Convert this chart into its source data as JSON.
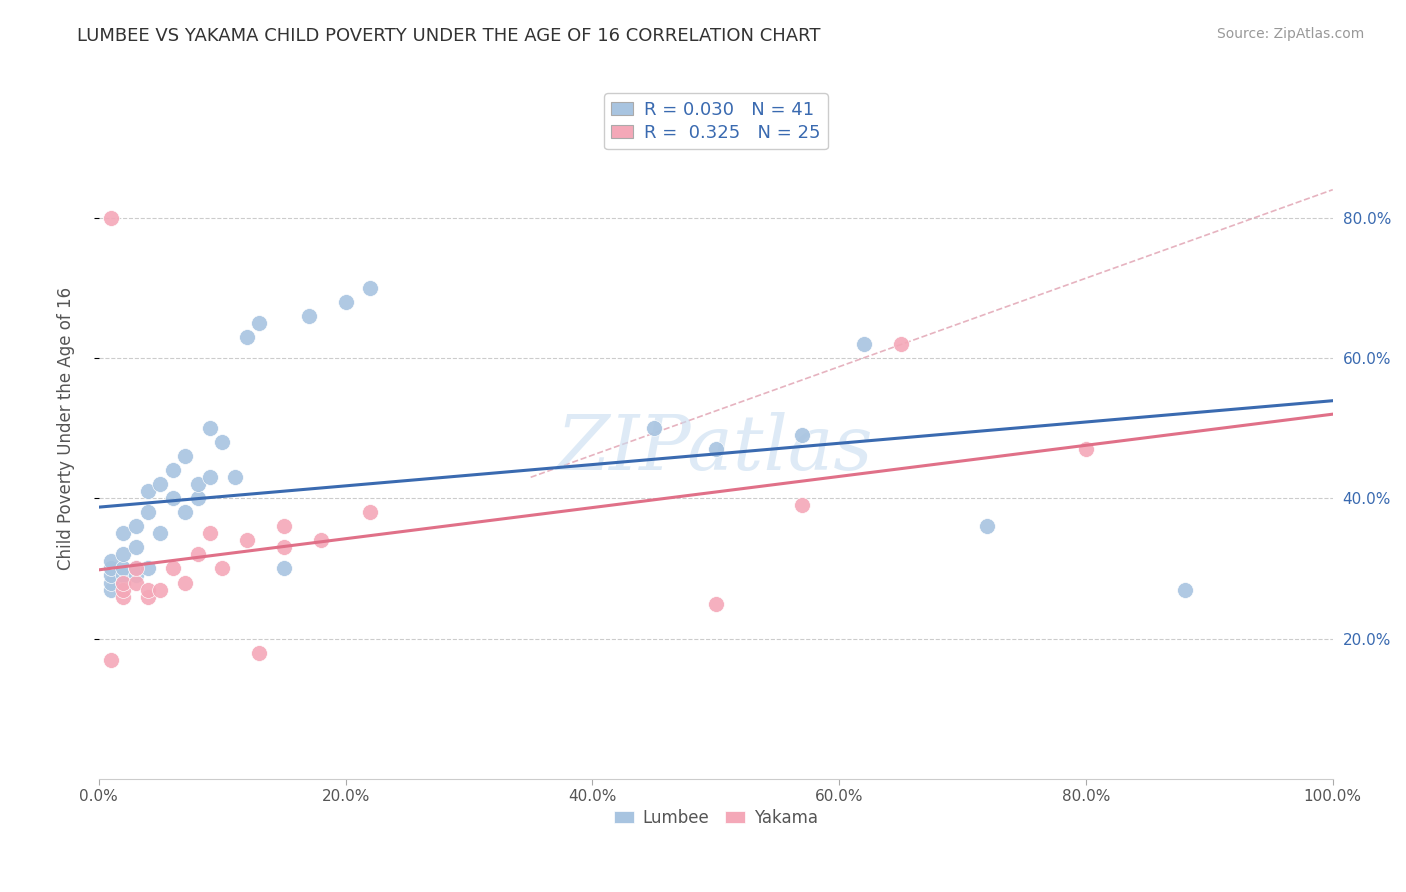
{
  "title": "LUMBEE VS YAKAMA CHILD POVERTY UNDER THE AGE OF 16 CORRELATION CHART",
  "source_text": "Source: ZipAtlas.com",
  "ylabel": "Child Poverty Under the Age of 16",
  "xlim": [
    0.0,
    1.0
  ],
  "ylim": [
    0.0,
    1.0
  ],
  "xticks": [
    0.0,
    0.2,
    0.4,
    0.6,
    0.8,
    1.0
  ],
  "yticks": [
    0.2,
    0.4,
    0.6,
    0.8
  ],
  "xtick_labels": [
    "0.0%",
    "20.0%",
    "40.0%",
    "60.0%",
    "80.0%",
    "100.0%"
  ],
  "ytick_labels": [
    "20.0%",
    "40.0%",
    "60.0%",
    "80.0%"
  ],
  "lumbee_R": 0.03,
  "lumbee_N": 41,
  "yakama_R": 0.325,
  "yakama_N": 25,
  "lumbee_color": "#a8c4e0",
  "yakama_color": "#f4a8b8",
  "lumbee_line_color": "#3a6ab0",
  "yakama_line_color": "#e07088",
  "dashed_line_color": "#e0a0b0",
  "grid_color": "#cccccc",
  "watermark_color": "#c8ddf0",
  "lumbee_x": [
    0.01,
    0.01,
    0.01,
    0.01,
    0.01,
    0.02,
    0.02,
    0.02,
    0.02,
    0.02,
    0.03,
    0.03,
    0.03,
    0.03,
    0.04,
    0.04,
    0.04,
    0.05,
    0.05,
    0.06,
    0.06,
    0.07,
    0.07,
    0.08,
    0.08,
    0.09,
    0.09,
    0.1,
    0.11,
    0.12,
    0.13,
    0.15,
    0.17,
    0.2,
    0.22,
    0.45,
    0.5,
    0.57,
    0.62,
    0.72,
    0.88
  ],
  "lumbee_y": [
    0.27,
    0.28,
    0.29,
    0.3,
    0.31,
    0.28,
    0.29,
    0.3,
    0.32,
    0.35,
    0.29,
    0.3,
    0.33,
    0.36,
    0.3,
    0.38,
    0.41,
    0.35,
    0.42,
    0.4,
    0.44,
    0.38,
    0.46,
    0.4,
    0.42,
    0.43,
    0.5,
    0.48,
    0.43,
    0.63,
    0.65,
    0.3,
    0.66,
    0.68,
    0.7,
    0.5,
    0.47,
    0.49,
    0.62,
    0.36,
    0.27
  ],
  "yakama_x": [
    0.01,
    0.01,
    0.02,
    0.02,
    0.02,
    0.03,
    0.03,
    0.04,
    0.04,
    0.05,
    0.06,
    0.07,
    0.08,
    0.09,
    0.1,
    0.12,
    0.13,
    0.15,
    0.15,
    0.18,
    0.22,
    0.5,
    0.57,
    0.65,
    0.8
  ],
  "yakama_y": [
    0.8,
    0.17,
    0.26,
    0.27,
    0.28,
    0.28,
    0.3,
    0.26,
    0.27,
    0.27,
    0.3,
    0.28,
    0.32,
    0.35,
    0.3,
    0.34,
    0.18,
    0.36,
    0.33,
    0.34,
    0.38,
    0.25,
    0.39,
    0.62,
    0.47
  ]
}
